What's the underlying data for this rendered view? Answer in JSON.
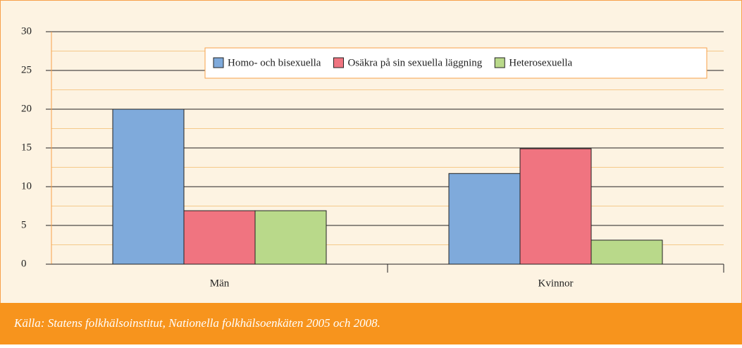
{
  "chart_data": {
    "type": "bar",
    "categories": [
      "Män",
      "Kvinnor"
    ],
    "series": [
      {
        "name": "Homo- och bisexuella",
        "color": "#7faadb",
        "values": [
          20,
          11.7
        ]
      },
      {
        "name": "Osäkra på sin sexuella läggning",
        "color": "#f07480",
        "values": [
          6.9,
          14.9
        ]
      },
      {
        "name": "Heterosexuella",
        "color": "#b9d98a",
        "values": [
          6.9,
          3.1
        ]
      }
    ],
    "ylim": [
      0,
      30
    ],
    "yticks": [
      0,
      5,
      10,
      15,
      20,
      25,
      30
    ],
    "grid": true,
    "legend": "top-right",
    "source": "Källa: Statens folkhälsoinstitut, Nationella folkhälsoenkäten 2005 och 2008."
  }
}
